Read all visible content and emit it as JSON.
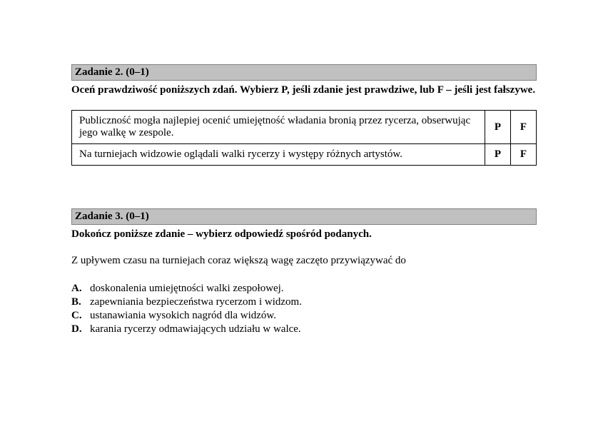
{
  "task2": {
    "header": "Zadanie 2. (0–1)",
    "instruction": "Oceń prawdziwość poniższych zdań. Wybierz P, jeśli zdanie jest prawdziwe, lub F – jeśli jest fałszywe.",
    "rows": [
      {
        "statement": "Publiczność mogła najlepiej ocenić umiejętność władania bronią przez rycerza, obserwując jego walkę w zespole.",
        "p": "P",
        "f": "F"
      },
      {
        "statement": "Na turniejach widzowie oglądali walki rycerzy i występy różnych artystów.",
        "p": "P",
        "f": "F"
      }
    ]
  },
  "task3": {
    "header": "Zadanie 3. (0–1)",
    "instruction": "Dokończ poniższe zdanie – wybierz odpowiedź spośród podanych.",
    "prompt": "Z upływem czasu na turniejach coraz większą wagę zaczęto przywiązywać do",
    "options": [
      {
        "letter": "A.",
        "text": "doskonalenia umiejętności walki zespołowej."
      },
      {
        "letter": "B.",
        "text": "zapewniania bezpieczeństwa rycerzom i widzom."
      },
      {
        "letter": "C.",
        "text": "ustanawiania wysokich nagród dla widzów."
      },
      {
        "letter": "D.",
        "text": "karania rycerzy odmawiających udziału w walce."
      }
    ]
  },
  "colors": {
    "header_bg": "#c0c0c0",
    "header_border": "#808080",
    "table_border": "#000000",
    "text": "#000000",
    "page_bg": "#ffffff"
  },
  "typography": {
    "family": "Times New Roman",
    "base_size_pt": 11
  }
}
